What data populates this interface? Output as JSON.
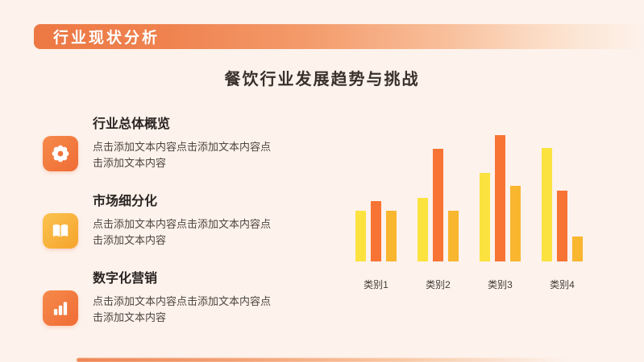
{
  "slide": {
    "background_color": "#FDF2EC",
    "header": {
      "label": "行业现状分析"
    },
    "title": "餐饮行业发展趋势与挑战",
    "features": [
      {
        "icon": "gear-icon",
        "title": "行业总体概览",
        "body": "点击添加文本内容点击添加文本内容点击添加文本内容"
      },
      {
        "icon": "open-book-icon",
        "title": "市场细分化",
        "body": "点击添加文本内容点击添加文本内容点击添加文本内容"
      },
      {
        "icon": "bar-chart-icon",
        "title": "数字化营销",
        "body": "点击添加文本内容点击添加文本内容点击添加文本内容"
      }
    ],
    "colors": {
      "banner_gradient_start": "#ED7843",
      "icon_orange": "#F2753C",
      "icon_amber": "#F9B33B",
      "title_text": "#3A302B",
      "body_text": "#4F463F"
    }
  },
  "chart_data": {
    "type": "bar",
    "categories": [
      "类别1",
      "类别2",
      "类别3",
      "类别4"
    ],
    "series": [
      {
        "name": "series-yellow",
        "color": "#FCE23F",
        "values": [
          4.0,
          5.0,
          7.0,
          9.0
        ]
      },
      {
        "name": "series-orange",
        "color": "#F87434",
        "values": [
          4.8,
          8.9,
          10.0,
          5.6
        ]
      },
      {
        "name": "series-amber",
        "color": "#F9B62F",
        "values": [
          4.0,
          4.0,
          6.0,
          2.0
        ]
      }
    ],
    "title": "",
    "xlabel": "",
    "ylabel": "",
    "ylim": [
      0,
      10
    ],
    "grid": false,
    "legend_position": "none"
  }
}
